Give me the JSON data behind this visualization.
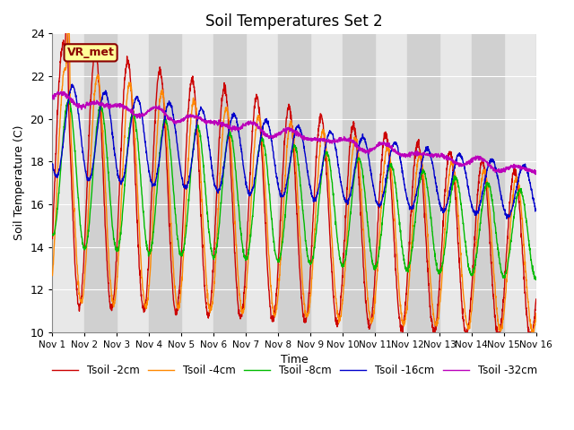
{
  "title": "Soil Temperatures Set 2",
  "xlabel": "Time",
  "ylabel": "Soil Temperature (C)",
  "ylim": [
    10,
    24
  ],
  "xlim": [
    0,
    15
  ],
  "annotation": "VR_met",
  "bg_color": "#ffffff",
  "plot_bg_light": "#e8e8e8",
  "plot_bg_dark": "#d0d0d0",
  "series": {
    "Tsoil -2cm": {
      "color": "#cc0000",
      "lw": 1.0
    },
    "Tsoil -4cm": {
      "color": "#ff8800",
      "lw": 1.0
    },
    "Tsoil -8cm": {
      "color": "#00bb00",
      "lw": 1.0
    },
    "Tsoil -16cm": {
      "color": "#0000cc",
      "lw": 1.0
    },
    "Tsoil -32cm": {
      "color": "#bb00bb",
      "lw": 1.0
    }
  },
  "xtick_labels": [
    "Nov 1",
    "Nov 2",
    "Nov 3",
    "Nov 4",
    "Nov 5",
    "Nov 6",
    "Nov 7",
    "Nov 8",
    "Nov 9",
    "Nov 10",
    "Nov 11",
    "Nov 12",
    "Nov 13",
    "Nov 14",
    "Nov 15",
    "Nov 16"
  ],
  "ytick_values": [
    10,
    12,
    14,
    16,
    18,
    20,
    22,
    24
  ]
}
